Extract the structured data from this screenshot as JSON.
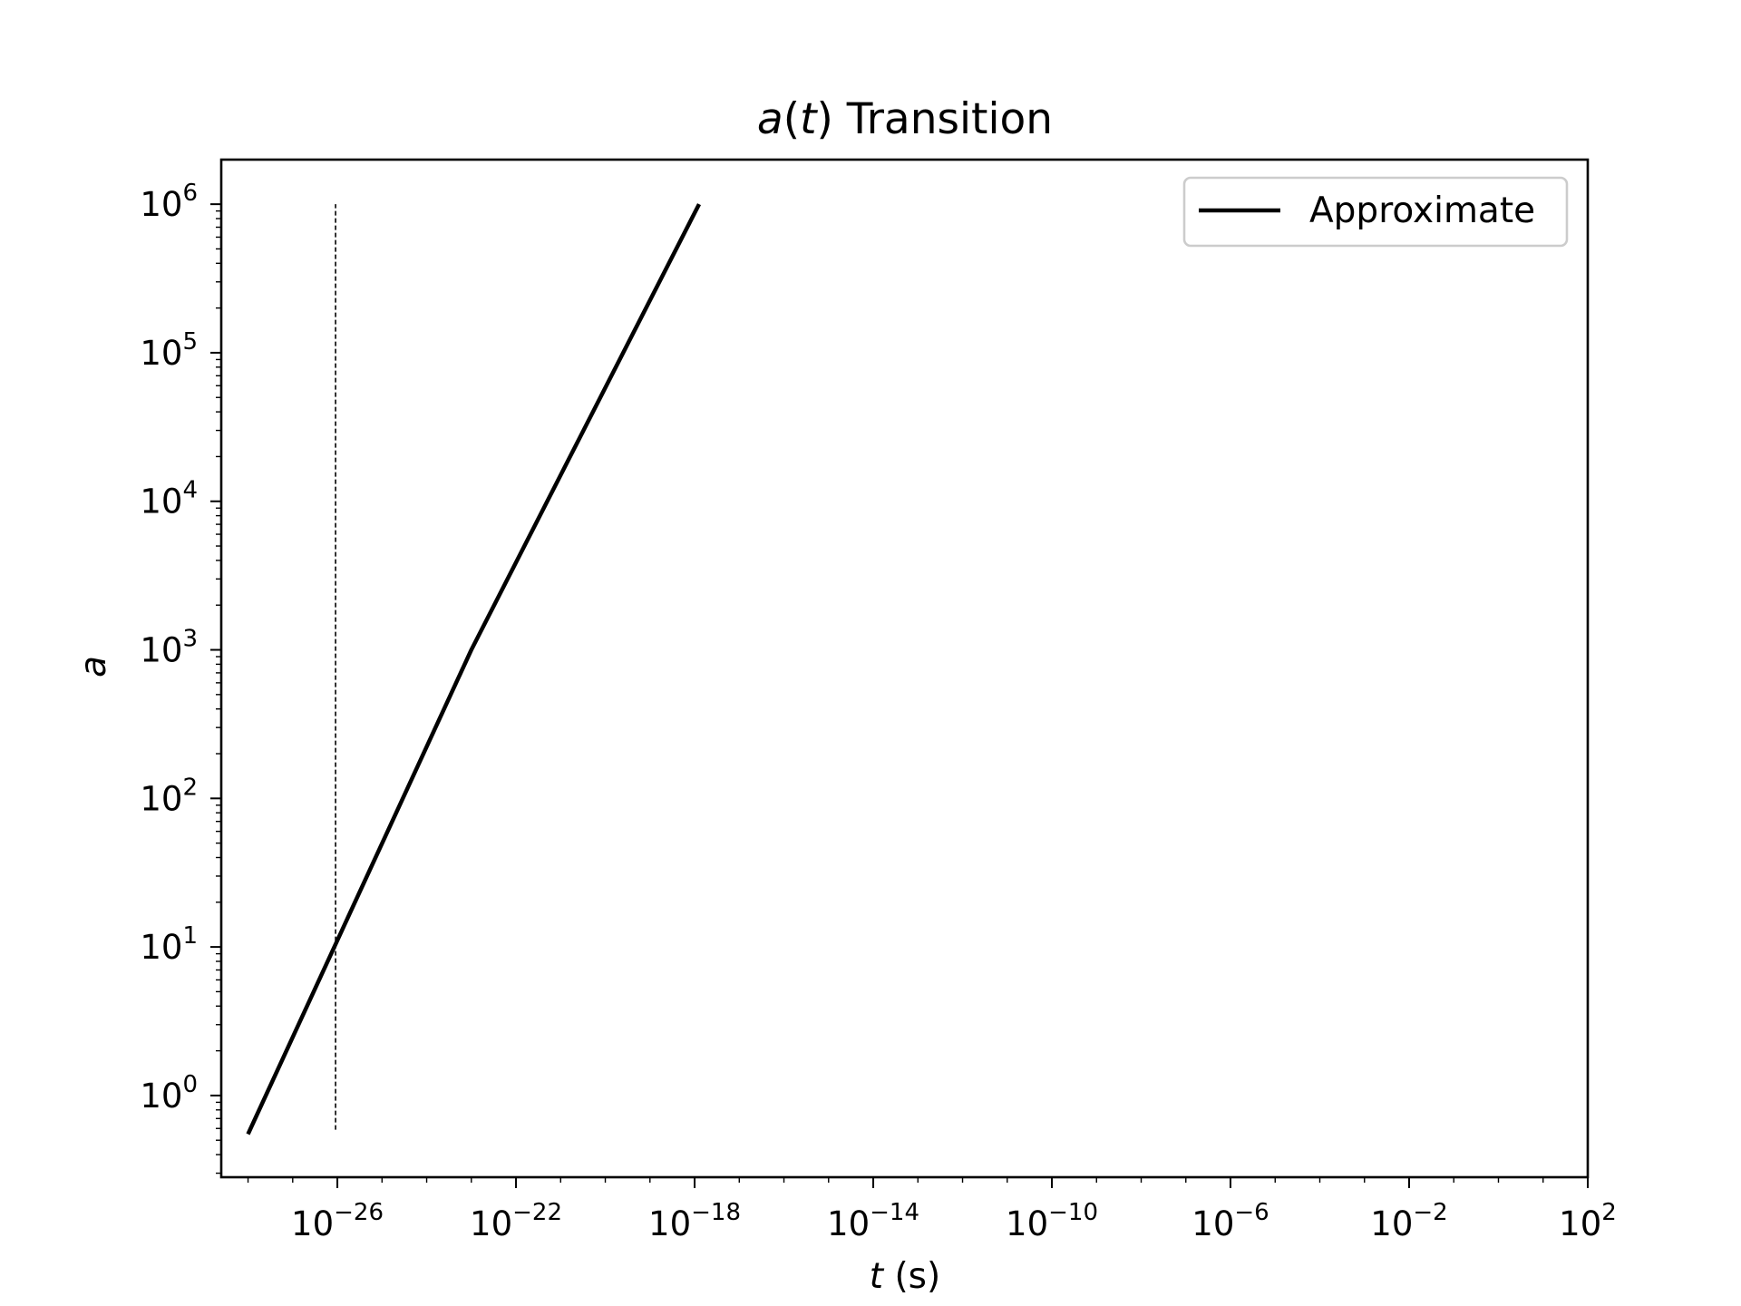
{
  "chart_data": {
    "type": "line",
    "title_parts": {
      "var": "a",
      "open": "(",
      "arg": "t",
      "close": ")",
      "rest": " Transition"
    },
    "xlabel_parts": {
      "var": "t",
      "rest": " (s)"
    },
    "ylabel": "a",
    "xscale": "log",
    "yscale": "log",
    "xlim_log10": [
      -28.6,
      2
    ],
    "ylim_log10": [
      -0.55,
      6.3
    ],
    "x_ticks": [
      {
        "base": "10",
        "exp": "−26",
        "log10": -26
      },
      {
        "base": "10",
        "exp": "−22",
        "log10": -22
      },
      {
        "base": "10",
        "exp": "−18",
        "log10": -18
      },
      {
        "base": "10",
        "exp": "−14",
        "log10": -14
      },
      {
        "base": "10",
        "exp": "−10",
        "log10": -10
      },
      {
        "base": "10",
        "exp": "−6",
        "log10": -6
      },
      {
        "base": "10",
        "exp": "−2",
        "log10": -2
      },
      {
        "base": "10",
        "exp": "2",
        "log10": 2
      }
    ],
    "y_ticks": [
      {
        "base": "10",
        "exp": "0",
        "log10": 0
      },
      {
        "base": "10",
        "exp": "1",
        "log10": 1
      },
      {
        "base": "10",
        "exp": "2",
        "log10": 2
      },
      {
        "base": "10",
        "exp": "3",
        "log10": 3
      },
      {
        "base": "10",
        "exp": "4",
        "log10": 4
      },
      {
        "base": "10",
        "exp": "5",
        "log10": 5
      },
      {
        "base": "10",
        "exp": "6",
        "log10": 6
      }
    ],
    "series": [
      {
        "name": "Approximate",
        "color": "#000000",
        "points_log10": [
          [
            -28.0,
            -0.26
          ],
          [
            -23.0,
            3.0
          ],
          [
            -17.9,
            6.0
          ]
        ]
      }
    ],
    "reference_line": {
      "x_log10": -26.04,
      "y_log10_range": [
        -0.23,
        6.0
      ],
      "style": "dashed",
      "color": "#000000"
    },
    "legend": {
      "position": "top-right",
      "entries": [
        "Approximate"
      ]
    },
    "grid": false
  }
}
